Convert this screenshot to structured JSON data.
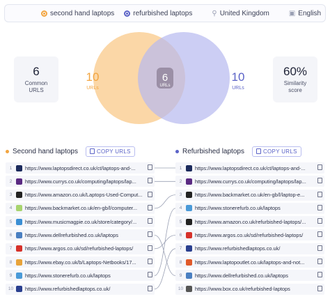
{
  "filters": {
    "keyword1": "second hand laptops",
    "keyword2": "refurbished laptops",
    "location": "United Kingdom",
    "language": "English"
  },
  "stats": {
    "common_urls_value": "6",
    "common_urls_label": "Common URLS",
    "similarity_value": "60%",
    "similarity_label": "Similarity score"
  },
  "venn": {
    "left_count": "10",
    "left_label": "URLs",
    "overlap_count": "6",
    "overlap_label": "URLs",
    "right_count": "10",
    "right_label": "URLs",
    "left_color": "#f9c98a",
    "right_color": "#b7b9ef"
  },
  "left_column": {
    "title": "Second hand laptops",
    "copy_label": "COPY URLS",
    "rows": [
      {
        "num": "1",
        "url": "https://www.laptopsdirect.co.uk/ct/laptops-and-...",
        "fav": "laptopsdirect",
        "color": "#1b2a5c"
      },
      {
        "num": "2",
        "url": "https://www.currys.co.uk/computing/laptops/lap...",
        "fav": "currys",
        "color": "#5a2a82"
      },
      {
        "num": "3",
        "url": "https://www.amazon.co.uk/Laptops-Used-Comput...",
        "fav": "amazon",
        "color": "#222222"
      },
      {
        "num": "4",
        "url": "https://www.backmarket.co.uk/en-gb/l/computer...",
        "fav": "backmarket",
        "color": "#a8d46f"
      },
      {
        "num": "5",
        "url": "https://www.musicmagpie.co.uk/store/category/...",
        "fav": "musicmagpie",
        "color": "#3b8fd4"
      },
      {
        "num": "6",
        "url": "https://www.dellrefurbished.co.uk/laptops",
        "fav": "dell",
        "color": "#4a7fc1"
      },
      {
        "num": "7",
        "url": "https://www.argos.co.uk/sd/refurbished-laptops/",
        "fav": "argos",
        "color": "#d6312a"
      },
      {
        "num": "8",
        "url": "https://www.ebay.co.uk/b/Laptops-Netbooks/17...",
        "fav": "ebay",
        "color": "#e8a33a"
      },
      {
        "num": "9",
        "url": "https://www.stonerefurb.co.uk/laptops",
        "fav": "stonerefurb",
        "color": "#4a9ad8"
      },
      {
        "num": "10",
        "url": "https://www.refurbishedlaptops.co.uk/",
        "fav": "refurbishedlaptops",
        "color": "#2a3f8f"
      }
    ]
  },
  "right_column": {
    "title": "Refurbished laptops",
    "copy_label": "COPY URLS",
    "rows": [
      {
        "num": "1",
        "url": "https://www.laptopsdirect.co.uk/ct/laptops-and-...",
        "fav": "laptopsdirect",
        "color": "#1b2a5c"
      },
      {
        "num": "2",
        "url": "https://www.currys.co.uk/computing/laptops/lap...",
        "fav": "currys",
        "color": "#5a2a82"
      },
      {
        "num": "3",
        "url": "https://www.backmarket.co.uk/en-gb/l/laptop-e...",
        "fav": "backmarket",
        "color": "#222222"
      },
      {
        "num": "4",
        "url": "https://www.stonerefurb.co.uk/laptops",
        "fav": "stonerefurb",
        "color": "#4a9ad8"
      },
      {
        "num": "5",
        "url": "https://www.amazon.co.uk/refurbished-laptops/...",
        "fav": "amazon",
        "color": "#222222"
      },
      {
        "num": "6",
        "url": "https://www.argos.co.uk/sd/refurbished-laptops/",
        "fav": "argos",
        "color": "#d6312a"
      },
      {
        "num": "7",
        "url": "https://www.refurbishedlaptops.co.uk/",
        "fav": "refurbishedlaptops",
        "color": "#2a3f8f"
      },
      {
        "num": "8",
        "url": "https://www.laptopoutlet.co.uk/laptops-and-not...",
        "fav": "laptopoutlet",
        "color": "#e05a2a"
      },
      {
        "num": "9",
        "url": "https://www.dellrefurbished.co.uk/laptops",
        "fav": "dell",
        "color": "#4a7fc1"
      },
      {
        "num": "10",
        "url": "https://www.box.co.uk/refurbished-laptops",
        "fav": "box",
        "color": "#555555"
      }
    ]
  },
  "connections": [
    [
      1,
      1
    ],
    [
      2,
      2
    ],
    [
      4,
      3
    ],
    [
      9,
      4
    ],
    [
      7,
      6
    ],
    [
      10,
      7
    ],
    [
      6,
      9
    ]
  ]
}
